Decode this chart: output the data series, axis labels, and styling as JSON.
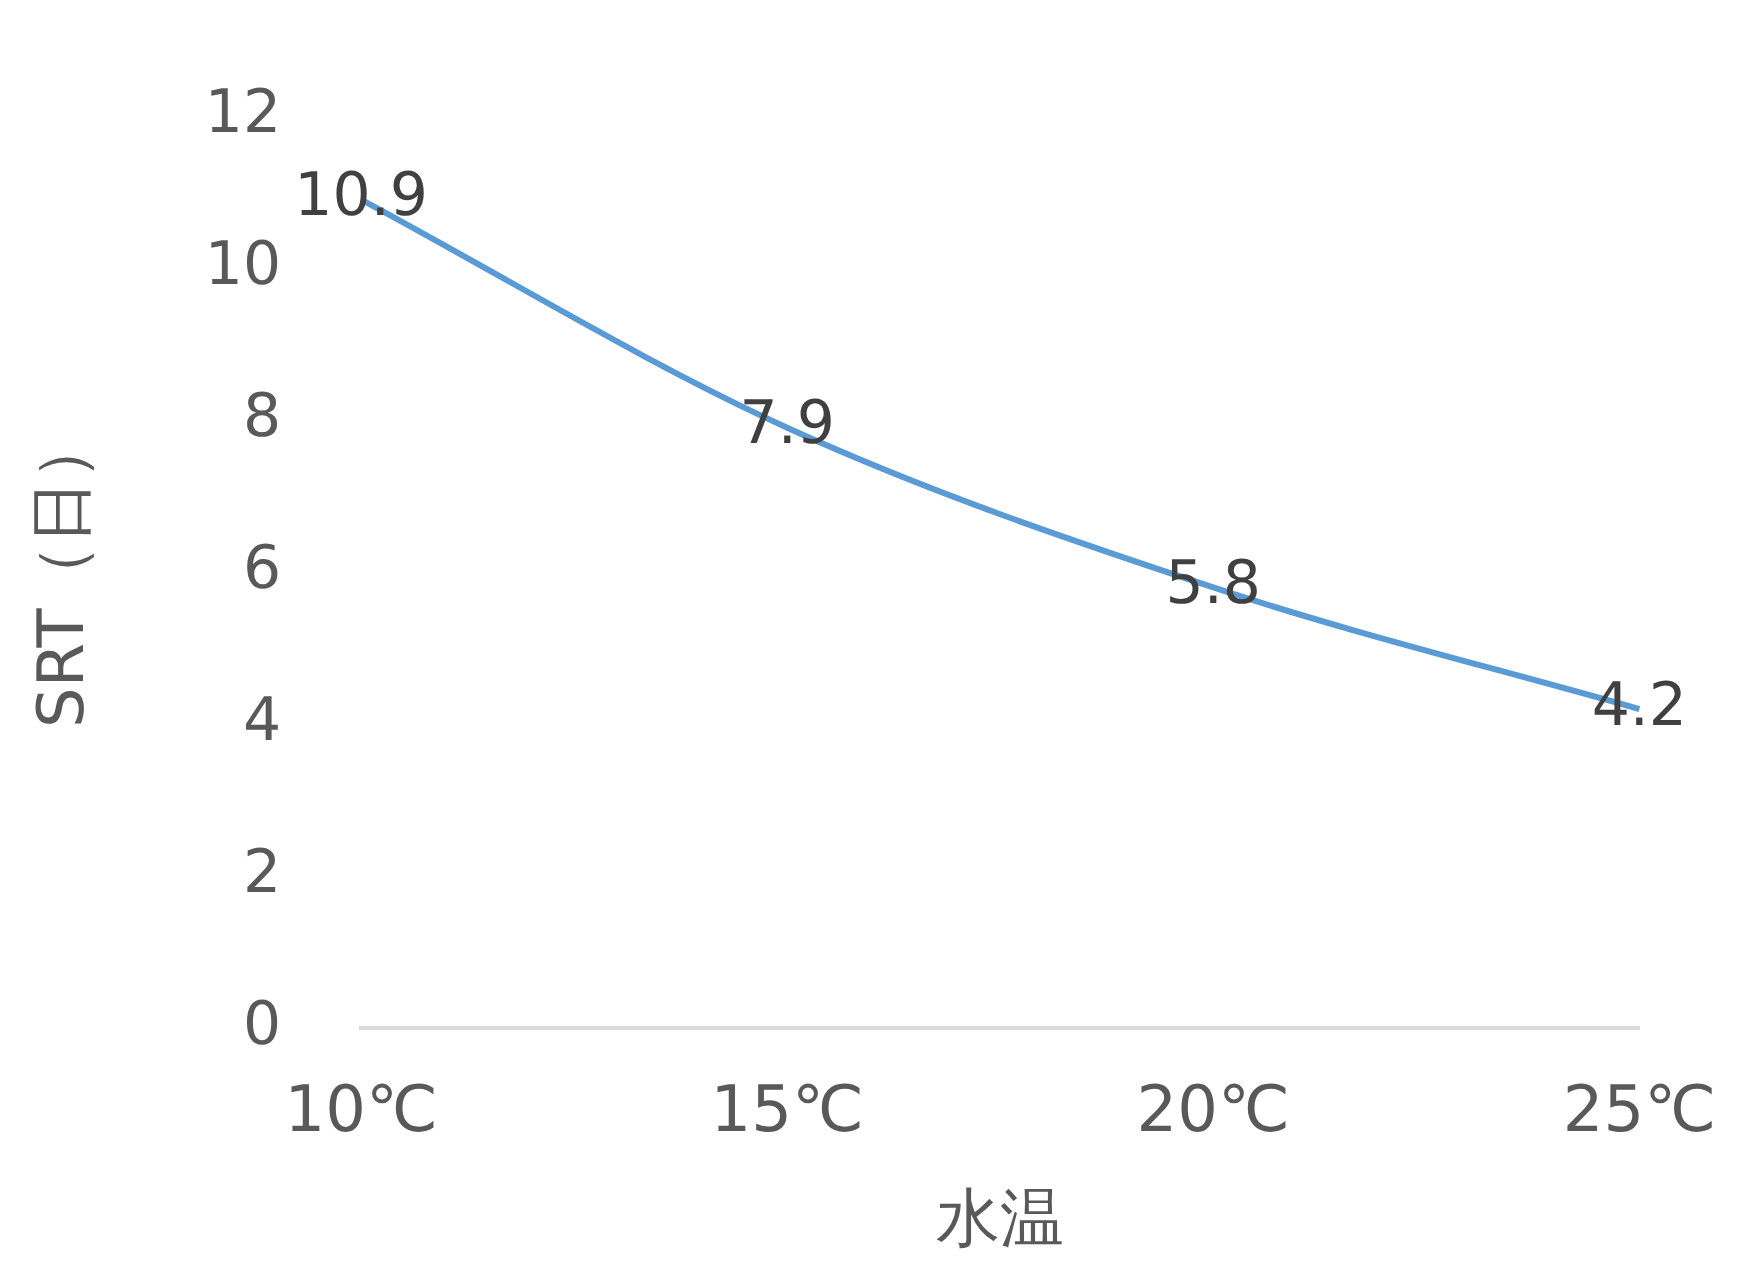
{
  "chart_data": {
    "type": "line",
    "xlabel": "水温",
    "ylabel": "SRT（日）",
    "categories": [
      "10℃",
      "15℃",
      "20℃",
      "25℃"
    ],
    "series": [
      {
        "color": "#5b9bd5",
        "values": [
          10.9,
          7.9,
          5.8,
          4.2
        ]
      }
    ],
    "ylim": [
      0,
      12
    ],
    "yticks": [
      0,
      2,
      4,
      6,
      8,
      10,
      12
    ],
    "grid": false,
    "legend": false,
    "marker": "none",
    "data_labels": true
  }
}
